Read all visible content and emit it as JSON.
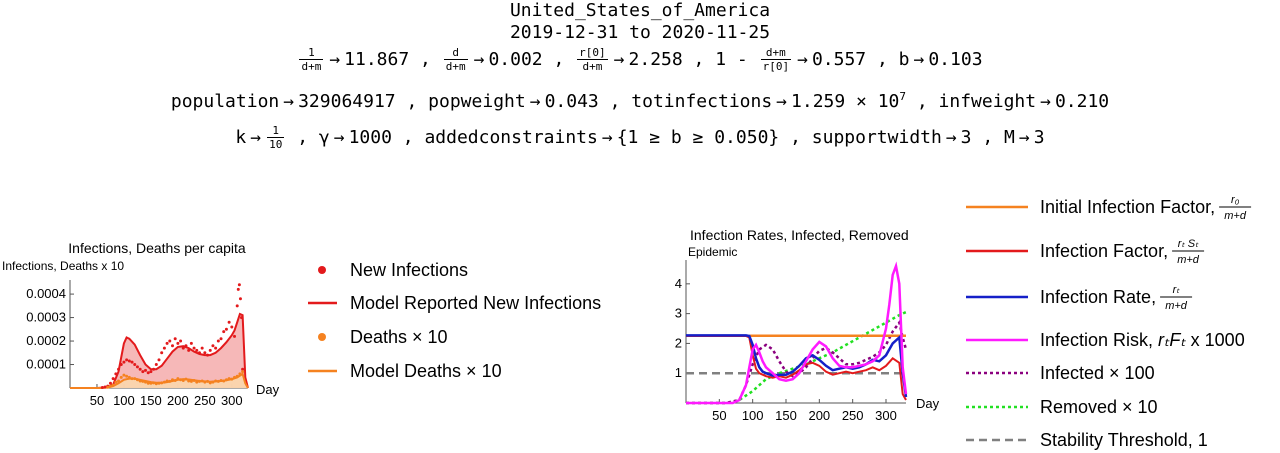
{
  "header": {
    "country": "United_States_of_America",
    "date_range": "2019-12-31 to 2020-11-25"
  },
  "params": {
    "line1": [
      {
        "num": "1",
        "den": "d+m",
        "value": "11.867"
      },
      {
        "num": "d",
        "den": "d+m",
        "value": "0.002"
      },
      {
        "num": "r[0]",
        "den": "d+m",
        "value": "2.258"
      },
      {
        "prefix": "1 -",
        "num": "d+m",
        "den": "r[0]",
        "value": "0.557"
      },
      {
        "label": "b",
        "value": "0.103"
      }
    ],
    "line2": [
      {
        "label": "population",
        "value": "329064917"
      },
      {
        "label": "popweight",
        "value": "0.043"
      },
      {
        "label": "totinfections",
        "value": "1.259 × 10",
        "exp": "7"
      },
      {
        "label": "infweight",
        "value": "0.210"
      }
    ],
    "line3": [
      {
        "label": "k",
        "frac_num": "1",
        "frac_den": "10"
      },
      {
        "label": "γ",
        "value": "1000"
      },
      {
        "label": "addedconstraints",
        "value": "{1 ≥ b ≥ 0.050}"
      },
      {
        "label": "supportwidth",
        "value": "3"
      },
      {
        "label": "M",
        "value": "3"
      }
    ],
    "arrow": "→",
    "sep": ","
  },
  "colors": {
    "red": "#e31a1c",
    "orange": "#f58220",
    "blue": "#1520c8",
    "magenta": "#ff1aff",
    "purple": "#8b007f",
    "green": "#22e022",
    "gray": "#808080",
    "fill_red": "#f4a6a6",
    "fill_orange": "#fbd7ad"
  },
  "chart_data": [
    {
      "type": "line",
      "title": "Infections, Deaths per capita",
      "ylabel": "Infections, Deaths x 10",
      "xlabel": "Day",
      "xlim": [
        0,
        330
      ],
      "ylim": [
        0,
        0.00046
      ],
      "xticks": [
        "50",
        "100",
        "150",
        "200",
        "250",
        "300"
      ],
      "yticks": [
        "0.0001",
        "0.0002",
        "0.0003",
        "0.0004"
      ],
      "legend": [
        {
          "name": "New Infections",
          "style": "points",
          "color": "red"
        },
        {
          "name": "Model Reported New Infections",
          "style": "line",
          "color": "red"
        },
        {
          "name": "Deaths × 10",
          "style": "points",
          "color": "orange"
        },
        {
          "name": "Model Deaths × 10",
          "style": "line",
          "color": "orange"
        }
      ],
      "series": [
        {
          "name": "Model Reported New Infections",
          "x": [
            0,
            50,
            70,
            80,
            90,
            95,
            100,
            105,
            110,
            120,
            130,
            140,
            150,
            160,
            170,
            180,
            190,
            200,
            210,
            220,
            230,
            240,
            250,
            260,
            270,
            280,
            290,
            300,
            305,
            310,
            315,
            320,
            325,
            330
          ],
          "y": [
            0,
            0,
            3e-06,
            1.5e-05,
            7e-05,
            0.00013,
            0.00019,
            0.000215,
            0.00021,
            0.000185,
            0.00014,
            0.0001,
            8e-05,
            8e-05,
            9.5e-05,
            0.000125,
            0.000155,
            0.000175,
            0.000178,
            0.00017,
            0.000155,
            0.000145,
            0.00014,
            0.00014,
            0.00015,
            0.00017,
            0.000195,
            0.000225,
            0.000245,
            0.00028,
            0.000315,
            0.00031,
            4.5e-05,
            0
          ]
        },
        {
          "name": "New Infections",
          "x": [
            60,
            65,
            70,
            75,
            80,
            85,
            90,
            95,
            100,
            105,
            110,
            115,
            120,
            125,
            130,
            135,
            140,
            145,
            150,
            155,
            160,
            165,
            170,
            175,
            180,
            185,
            190,
            195,
            200,
            205,
            210,
            215,
            220,
            225,
            230,
            235,
            240,
            245,
            250,
            255,
            260,
            265,
            270,
            275,
            280,
            285,
            290,
            295,
            300,
            305,
            310,
            312,
            314,
            316,
            318,
            320
          ],
          "y": [
            2e-06,
            4e-06,
            8e-06,
            2e-05,
            4e-05,
            6e-05,
            8e-05,
            0.0001,
            0.00011,
            0.00012,
            0.000115,
            0.00011,
            0.0001,
            9e-05,
            8e-05,
            7e-05,
            7.5e-05,
            6.5e-05,
            7e-05,
            8e-05,
            0.0001,
            0.00012,
            0.00015,
            0.00017,
            0.00019,
            0.0002,
            0.00018,
            0.00021,
            0.00019,
            0.0002,
            0.00017,
            0.00018,
            0.00016,
            0.00019,
            0.00017,
            0.00016,
            0.00015,
            0.00017,
            0.00015,
            0.00014,
            0.00016,
            0.00018,
            0.00017,
            0.0002,
            0.00021,
            0.00024,
            0.00025,
            0.00028,
            0.00026,
            0.00022,
            0.00035,
            0.00042,
            0.00044,
            0.00038,
            0.0003,
            8e-05
          ]
        },
        {
          "name": "Model Deaths × 10",
          "x": [
            0,
            60,
            70,
            80,
            90,
            100,
            110,
            120,
            130,
            140,
            150,
            160,
            170,
            180,
            190,
            200,
            210,
            220,
            230,
            240,
            250,
            260,
            270,
            280,
            290,
            300,
            310,
            320,
            325,
            330
          ],
          "y": [
            0,
            0,
            2e-06,
            8e-06,
            2e-05,
            3.5e-05,
            4e-05,
            4e-05,
            3.5e-05,
            3e-05,
            2.5e-05,
            2.2e-05,
            2.2e-05,
            2.5e-05,
            3e-05,
            3.5e-05,
            3.8e-05,
            3.6e-05,
            3.3e-05,
            3e-05,
            2.8e-05,
            2.7e-05,
            2.8e-05,
            3e-05,
            3.3e-05,
            3.8e-05,
            4.5e-05,
            6e-05,
            2e-05,
            0
          ]
        },
        {
          "name": "Deaths × 10",
          "x": [
            70,
            75,
            80,
            85,
            90,
            95,
            100,
            105,
            110,
            115,
            120,
            125,
            130,
            135,
            140,
            145,
            150,
            155,
            160,
            165,
            170,
            175,
            180,
            185,
            190,
            195,
            200,
            205,
            210,
            215,
            220,
            225,
            230,
            235,
            240,
            245,
            250,
            255,
            260,
            265,
            270,
            275,
            280,
            285,
            290,
            295,
            300,
            305,
            310,
            315,
            320
          ],
          "y": [
            3e-06,
            8e-06,
            1.2e-05,
            2.5e-05,
            3e-05,
            4.5e-05,
            5.5e-05,
            5e-05,
            4.5e-05,
            4e-05,
            4e-05,
            3.5e-05,
            3e-05,
            2.8e-05,
            2.5e-05,
            2e-05,
            2e-05,
            2.2e-05,
            1.8e-05,
            2e-05,
            2.2e-05,
            2.5e-05,
            3e-05,
            2.8e-05,
            3.5e-05,
            3.2e-05,
            4e-05,
            3.5e-05,
            3.2e-05,
            3.8e-05,
            3e-05,
            2.8e-05,
            3.2e-05,
            2.5e-05,
            2.8e-05,
            3e-05,
            2.5e-05,
            2.8e-05,
            2.2e-05,
            2.5e-05,
            3e-05,
            2.8e-05,
            3.2e-05,
            3e-05,
            3.5e-05,
            4e-05,
            3.8e-05,
            4.5e-05,
            5e-05,
            6e-05,
            7e-05
          ]
        }
      ]
    },
    {
      "type": "line",
      "title": "Infection Rates, Infected, Removed",
      "ylabel": "Epidemic",
      "xlabel": "Day",
      "xlim": [
        0,
        330
      ],
      "ylim": [
        0,
        4.8
      ],
      "xticks": [
        "50",
        "100",
        "150",
        "200",
        "250",
        "300"
      ],
      "yticks": [
        "1",
        "2",
        "3",
        "4"
      ],
      "legend": [
        {
          "name": "Initial Infection Factor, ",
          "math_num": "r₀",
          "math_den": "m+d",
          "style": "line",
          "color": "orange"
        },
        {
          "name": "Infection Factor, ",
          "math_num": "rₜ Sₜ",
          "math_den": "m+d",
          "style": "line",
          "color": "red"
        },
        {
          "name": "Infection Rate, ",
          "math_num": "rₜ",
          "math_den": "m+d",
          "style": "line",
          "color": "blue"
        },
        {
          "name": "Infection Risk, ",
          "math_tail": "rₜFₜ",
          "suffix": " x 1000",
          "style": "line",
          "color": "magenta"
        },
        {
          "name": "Infected × 100",
          "style": "dotted",
          "color": "purple"
        },
        {
          "name": "Removed × 10",
          "style": "dotted",
          "color": "green"
        },
        {
          "name": "Stability Threshold, 1",
          "style": "dashed",
          "color": "gray"
        }
      ],
      "series": [
        {
          "name": "Initial Infection Factor",
          "x": [
            95,
            330
          ],
          "y": [
            2.258,
            2.258
          ]
        },
        {
          "name": "Infection Factor",
          "x": [
            0,
            90,
            95,
            100,
            105,
            110,
            115,
            120,
            130,
            140,
            150,
            160,
            170,
            180,
            190,
            200,
            210,
            220,
            230,
            240,
            250,
            260,
            270,
            280,
            290,
            300,
            310,
            320,
            325,
            330
          ],
          "y": [
            2.25,
            2.25,
            2.2,
            1.6,
            1.15,
            1.0,
            0.95,
            0.9,
            0.85,
            0.9,
            0.85,
            0.95,
            1.1,
            1.3,
            1.35,
            1.25,
            1.05,
            0.95,
            1.0,
            1.05,
            1.0,
            1.05,
            1.1,
            1.2,
            1.1,
            1.25,
            1.5,
            1.35,
            0.3,
            0.1
          ]
        },
        {
          "name": "Infection Rate",
          "x": [
            0,
            90,
            95,
            100,
            105,
            110,
            115,
            120,
            130,
            140,
            150,
            160,
            170,
            180,
            190,
            200,
            210,
            220,
            230,
            240,
            250,
            260,
            270,
            280,
            290,
            300,
            310,
            320,
            325,
            330
          ],
          "y": [
            2.27,
            2.27,
            2.25,
            1.95,
            1.5,
            1.2,
            1.05,
            1.0,
            0.92,
            0.95,
            0.95,
            1.05,
            1.25,
            1.5,
            1.6,
            1.45,
            1.25,
            1.1,
            1.15,
            1.2,
            1.15,
            1.2,
            1.3,
            1.45,
            1.4,
            1.6,
            2.0,
            2.2,
            1.0,
            0.2
          ]
        },
        {
          "name": "Infection Risk",
          "x": [
            0,
            70,
            80,
            90,
            95,
            100,
            105,
            110,
            115,
            120,
            130,
            140,
            150,
            160,
            170,
            180,
            190,
            200,
            210,
            220,
            230,
            240,
            250,
            260,
            270,
            280,
            290,
            300,
            305,
            310,
            315,
            320,
            325,
            330
          ],
          "y": [
            0,
            0,
            0.1,
            0.6,
            1.2,
            1.8,
            1.95,
            1.7,
            1.4,
            1.2,
            1.0,
            0.8,
            0.75,
            0.8,
            1.0,
            1.4,
            1.8,
            2.05,
            1.9,
            1.5,
            1.25,
            1.2,
            1.2,
            1.25,
            1.3,
            1.4,
            1.6,
            2.5,
            3.3,
            4.3,
            4.6,
            4.0,
            1.2,
            0.3
          ]
        },
        {
          "name": "Infected × 100",
          "x": [
            0,
            60,
            80,
            90,
            100,
            110,
            120,
            130,
            140,
            150,
            160,
            170,
            180,
            190,
            200,
            210,
            220,
            230,
            240,
            250,
            260,
            270,
            280,
            290,
            300,
            310,
            320,
            325,
            330
          ],
          "y": [
            0,
            0,
            0.1,
            0.6,
            1.3,
            1.8,
            1.95,
            1.8,
            1.4,
            1.05,
            0.9,
            1.0,
            1.2,
            1.5,
            1.75,
            1.85,
            1.7,
            1.5,
            1.3,
            1.3,
            1.35,
            1.45,
            1.55,
            1.7,
            1.95,
            2.4,
            2.7,
            2.2,
            1.8
          ]
        },
        {
          "name": "Removed × 10",
          "x": [
            0,
            60,
            80,
            100,
            120,
            140,
            160,
            180,
            200,
            220,
            240,
            260,
            280,
            300,
            320,
            330
          ],
          "y": [
            0,
            0,
            0.1,
            0.4,
            0.8,
            1.0,
            1.15,
            1.3,
            1.5,
            1.7,
            1.95,
            2.2,
            2.45,
            2.7,
            2.95,
            3.05
          ]
        },
        {
          "name": "Stability Threshold, 1",
          "x": [
            0,
            330
          ],
          "y": [
            1,
            1
          ]
        }
      ]
    }
  ]
}
